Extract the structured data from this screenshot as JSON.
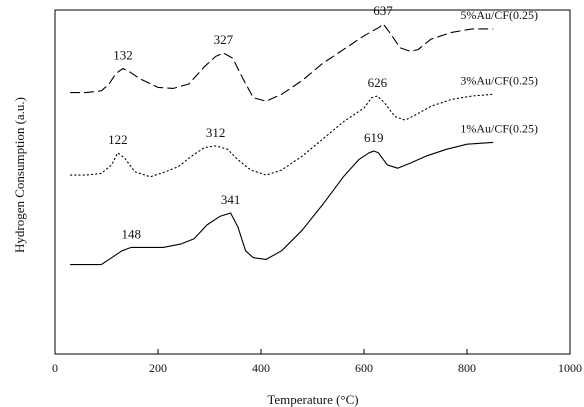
{
  "chart_data": {
    "type": "line",
    "xlabel": "Temperature (°C)",
    "ylabel": "Hydrogen Consumption (a.u.)",
    "xlim": [
      0,
      1000
    ],
    "ylim": [
      0,
      100
    ],
    "xticks": [
      "0",
      "200",
      "400",
      "600",
      "800",
      "1000"
    ],
    "grid": false,
    "series": [
      {
        "name": "5%Au/CF(0.25)",
        "style": "dashed",
        "x": [
          30,
          60,
          90,
          105,
          118,
          132,
          145,
          165,
          200,
          230,
          260,
          290,
          312,
          327,
          345,
          365,
          385,
          410,
          440,
          480,
          520,
          560,
          600,
          630,
          637,
          652,
          670,
          690,
          705,
          730,
          770,
          810,
          850
        ],
        "y": [
          76.0,
          76.0,
          76.5,
          78.5,
          81.5,
          83.0,
          82.0,
          80.0,
          77.5,
          77.2,
          78.5,
          83.5,
          86.5,
          87.5,
          86.0,
          80.0,
          74.5,
          73.5,
          75.5,
          79.5,
          84.5,
          88.5,
          92.5,
          95.0,
          96.0,
          93.0,
          89.0,
          88.0,
          88.5,
          91.5,
          93.5,
          94.5,
          94.5
        ]
      },
      {
        "name": "3%Au/CF(0.25)",
        "style": "dotted",
        "x": [
          30,
          60,
          90,
          110,
          122,
          135,
          155,
          185,
          215,
          240,
          265,
          290,
          312,
          335,
          355,
          380,
          410,
          440,
          480,
          520,
          560,
          600,
          615,
          626,
          640,
          660,
          680,
          700,
          730,
          770,
          810,
          850
        ],
        "y": [
          52.0,
          52.0,
          52.5,
          55.0,
          58.5,
          57.0,
          53.0,
          51.5,
          53.0,
          54.5,
          57.5,
          60.0,
          60.5,
          59.5,
          56.5,
          53.5,
          52.0,
          53.5,
          57.5,
          62.5,
          67.5,
          71.5,
          74.5,
          75.0,
          73.0,
          69.0,
          68.0,
          69.5,
          72.0,
          74.0,
          75.0,
          75.5
        ]
      },
      {
        "name": "1%Au/CF(0.25)",
        "style": "solid",
        "x": [
          30,
          60,
          90,
          110,
          130,
          148,
          175,
          210,
          245,
          270,
          295,
          320,
          341,
          355,
          370,
          385,
          410,
          440,
          480,
          520,
          560,
          590,
          610,
          619,
          628,
          645,
          665,
          690,
          720,
          760,
          800,
          850
        ],
        "y": [
          26.0,
          26.0,
          26.0,
          28.0,
          30.0,
          31.0,
          31.0,
          31.0,
          32.0,
          33.5,
          37.5,
          40.0,
          41.0,
          37.0,
          30.0,
          28.0,
          27.5,
          30.0,
          36.0,
          43.5,
          51.5,
          56.5,
          58.5,
          59.0,
          58.5,
          55.0,
          54.0,
          55.5,
          57.5,
          59.5,
          61.0,
          61.5
        ]
      }
    ],
    "peak_labels": [
      {
        "text": "132",
        "x": 132,
        "y": 83.0,
        "series": 0
      },
      {
        "text": "327",
        "x": 327,
        "y": 87.5,
        "series": 0
      },
      {
        "text": "637",
        "x": 637,
        "y": 96.0,
        "series": 0
      },
      {
        "text": "122",
        "x": 122,
        "y": 58.5,
        "series": 1
      },
      {
        "text": "312",
        "x": 312,
        "y": 60.5,
        "series": 1
      },
      {
        "text": "626",
        "x": 626,
        "y": 75.0,
        "series": 1
      },
      {
        "text": "148",
        "x": 148,
        "y": 31.0,
        "series": 2
      },
      {
        "text": "341",
        "x": 341,
        "y": 41.0,
        "series": 2
      },
      {
        "text": "619",
        "x": 619,
        "y": 59.0,
        "series": 2
      }
    ]
  },
  "colors": {
    "line": "#000000",
    "axis": "#000000"
  }
}
